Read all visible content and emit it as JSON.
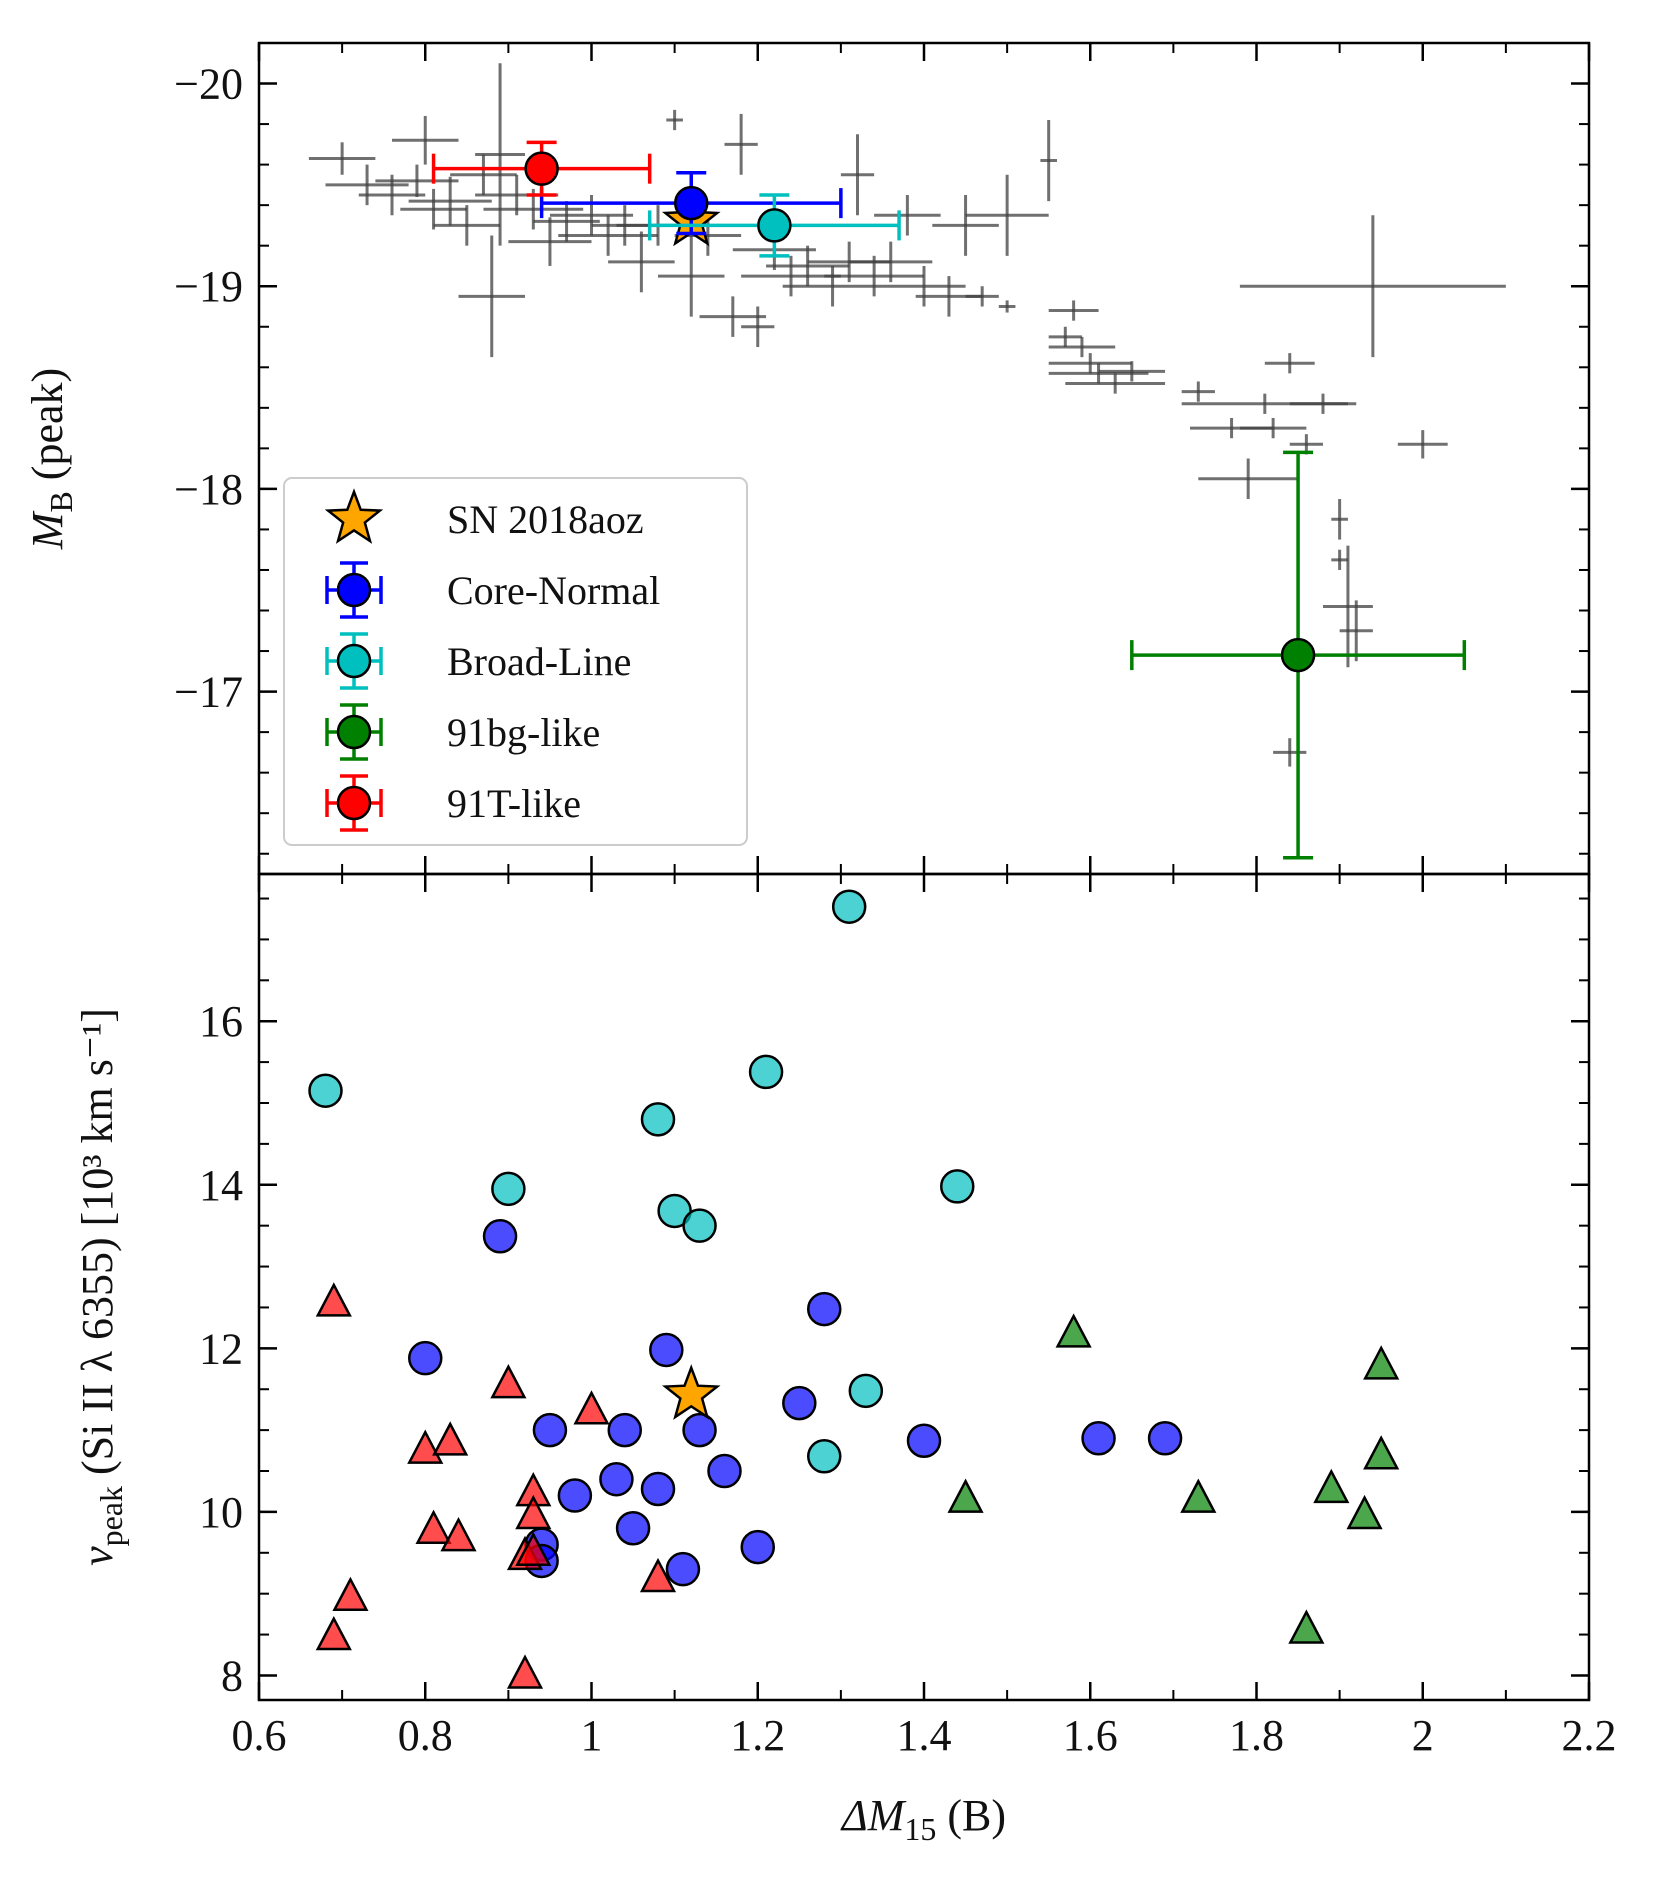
{
  "chart_data": [
    {
      "type": "errorbar",
      "ylabel": {
        "text": "M",
        "sub": "B",
        "after": " (peak)"
      },
      "xlim": [
        0.6,
        2.2
      ],
      "xticks": [
        0.6,
        0.8,
        1.0,
        1.2,
        1.4,
        1.6,
        1.8,
        2.0,
        2.2
      ],
      "ylim": [
        -16.1,
        -20.2
      ],
      "yticks": [
        {
          "value": -20,
          "label": "−20"
        },
        {
          "value": -19,
          "label": "−19"
        },
        {
          "value": -18,
          "label": "−18"
        },
        {
          "value": -17,
          "label": "−17"
        }
      ],
      "legend": "lower left",
      "series": [
        {
          "name": "SN 2018aoz",
          "marker": "star",
          "color": "#ffa500",
          "x": [
            1.12
          ],
          "values": [
            -19.32
          ]
        },
        {
          "name": "Core-Normal",
          "marker": "circle",
          "color": "#0000ff",
          "x": [
            1.12
          ],
          "values": [
            -19.41
          ],
          "xerr": [
            0.18
          ],
          "yerr": [
            0.15
          ]
        },
        {
          "name": "Broad-Line",
          "marker": "circle",
          "color": "#00bfbf",
          "x": [
            1.22
          ],
          "values": [
            -19.3
          ],
          "xerr": [
            0.15
          ],
          "yerr": [
            0.15
          ]
        },
        {
          "name": "91bg-like",
          "marker": "circle",
          "color": "#008000",
          "x": [
            1.85
          ],
          "values": [
            -17.18
          ],
          "xerr": [
            0.2
          ],
          "yerr": [
            1.0
          ]
        },
        {
          "name": "91T-like",
          "marker": "circle",
          "color": "#ff0000",
          "x": [
            0.94
          ],
          "values": [
            -19.58
          ],
          "xerr": [
            0.13
          ],
          "yerr": [
            0.13
          ]
        },
        {
          "marker": "plus",
          "color": "#404040",
          "x": [
            0.7,
            0.73,
            0.76,
            0.79,
            0.8,
            0.81,
            0.83,
            0.85,
            0.87,
            0.88,
            0.89,
            0.91,
            0.93,
            0.95,
            0.97,
            1.0,
            1.02,
            1.04,
            1.06,
            1.08,
            1.1,
            1.12,
            1.14,
            1.17,
            1.18,
            1.2,
            1.22,
            1.24,
            1.26,
            1.29,
            1.31,
            1.32,
            1.34,
            1.36,
            1.38,
            1.4,
            1.43,
            1.45,
            1.47,
            1.5,
            1.5,
            1.55,
            1.57,
            1.58,
            1.59,
            1.6,
            1.61,
            1.63,
            1.65,
            1.73,
            1.77,
            1.79,
            1.81,
            1.82,
            1.84,
            1.86,
            1.88,
            1.9,
            1.91,
            1.92,
            1.9,
            1.84,
            1.94,
            2.0
          ],
          "values": [
            -19.63,
            -19.5,
            -19.45,
            -19.52,
            -19.72,
            -19.38,
            -19.42,
            -19.3,
            -19.55,
            -18.95,
            -19.65,
            -19.45,
            -19.38,
            -19.22,
            -19.32,
            -19.35,
            -19.25,
            -19.3,
            -19.12,
            -19.3,
            -19.82,
            -19.05,
            -19.25,
            -18.85,
            -19.7,
            -18.8,
            -19.18,
            -19.05,
            -19.1,
            -19.0,
            -19.12,
            -19.55,
            -19.05,
            -19.12,
            -19.35,
            -19.0,
            -18.95,
            -19.3,
            -18.95,
            -18.9,
            -19.35,
            -19.62,
            -18.75,
            -18.88,
            -18.7,
            -18.62,
            -18.57,
            -18.52,
            -18.58,
            -18.48,
            -18.3,
            -18.05,
            -18.42,
            -18.3,
            -18.62,
            -18.22,
            -18.42,
            -17.85,
            -17.42,
            -17.3,
            -17.65,
            -16.7,
            -19.0,
            -18.22
          ],
          "xerr": [
            0.04,
            0.05,
            0.04,
            0.05,
            0.04,
            0.04,
            0.05,
            0.04,
            0.04,
            0.04,
            0.03,
            0.05,
            0.06,
            0.05,
            0.04,
            0.05,
            0.06,
            0.04,
            0.04,
            0.05,
            0.01,
            0.04,
            0.04,
            0.04,
            0.02,
            0.02,
            0.05,
            0.06,
            0.05,
            0.06,
            0.05,
            0.02,
            0.06,
            0.05,
            0.04,
            0.05,
            0.04,
            0.04,
            0.02,
            0.01,
            0.05,
            0.01,
            0.02,
            0.03,
            0.04,
            0.05,
            0.06,
            0.06,
            0.04,
            0.02,
            0.05,
            0.06,
            0.1,
            0.04,
            0.03,
            0.02,
            0.04,
            0.01,
            0.03,
            0.02,
            0.01,
            0.02,
            0.16,
            0.03
          ],
          "yerr": [
            0.08,
            0.1,
            0.1,
            0.08,
            0.12,
            0.1,
            0.12,
            0.1,
            0.1,
            0.3,
            0.45,
            0.1,
            0.1,
            0.12,
            0.1,
            0.1,
            0.1,
            0.1,
            0.15,
            0.1,
            0.05,
            0.2,
            0.1,
            0.1,
            0.15,
            0.1,
            0.1,
            0.1,
            0.1,
            0.1,
            0.1,
            0.2,
            0.1,
            0.1,
            0.1,
            0.1,
            0.1,
            0.15,
            0.05,
            0.03,
            0.2,
            0.2,
            0.05,
            0.05,
            0.05,
            0.05,
            0.05,
            0.05,
            0.05,
            0.05,
            0.05,
            0.1,
            0.05,
            0.05,
            0.05,
            0.05,
            0.05,
            0.1,
            0.3,
            0.15,
            0.05,
            0.07,
            0.35,
            0.07
          ]
        }
      ]
    },
    {
      "type": "scatter",
      "xlabel": {
        "text": "ΔM",
        "sub": "15",
        "after": " (B)"
      },
      "ylabel": {
        "text": "v",
        "sub": "peak",
        "after": " (Si II λ 6355) [10³ km s⁻¹]"
      },
      "xlim": [
        0.6,
        2.2
      ],
      "xticks": [
        0.6,
        0.8,
        1.0,
        1.2,
        1.4,
        1.6,
        1.8,
        2.0,
        2.2
      ],
      "ylim": [
        7.7,
        17.8
      ],
      "yticks": [
        8,
        10,
        12,
        14,
        16
      ],
      "series": [
        {
          "marker": "circle",
          "color": "#00bfbf",
          "x": [
            0.68,
            0.9,
            1.08,
            1.1,
            1.13,
            1.21,
            1.31,
            1.44,
            1.33,
            1.28
          ],
          "values": [
            15.15,
            13.95,
            14.8,
            13.68,
            13.5,
            15.38,
            17.4,
            13.98,
            11.48,
            10.68
          ]
        },
        {
          "marker": "circle",
          "color": "#0000ff",
          "x": [
            0.89,
            0.8,
            1.09,
            1.28,
            0.95,
            1.04,
            1.13,
            1.25,
            1.4,
            1.61,
            1.69,
            0.98,
            1.03,
            1.08,
            1.16,
            1.05,
            0.94,
            0.94,
            1.11,
            1.2
          ],
          "values": [
            13.37,
            11.88,
            11.98,
            12.48,
            11.0,
            11.0,
            11.0,
            11.33,
            10.87,
            10.9,
            10.9,
            10.2,
            10.4,
            10.28,
            10.5,
            9.8,
            9.6,
            9.4,
            9.3,
            9.57
          ]
        },
        {
          "marker": "triangle",
          "color": "#ff0000",
          "x": [
            0.69,
            0.9,
            1.0,
            0.8,
            0.83,
            0.81,
            0.84,
            0.93,
            0.93,
            0.92,
            0.93,
            1.08,
            0.71,
            0.69,
            0.92
          ],
          "values": [
            12.55,
            11.55,
            11.23,
            10.75,
            10.85,
            9.77,
            9.68,
            10.23,
            9.95,
            9.45,
            9.5,
            9.18,
            8.95,
            8.47,
            8.0
          ]
        },
        {
          "marker": "triangle",
          "color": "#008000",
          "x": [
            1.58,
            1.45,
            1.73,
            1.89,
            1.93,
            1.95,
            1.95,
            1.86
          ],
          "values": [
            12.17,
            10.15,
            10.15,
            10.27,
            9.95,
            10.68,
            11.78,
            8.55
          ]
        },
        {
          "marker": "star",
          "color": "#ffa500",
          "x": [
            1.12
          ],
          "values": [
            11.43
          ]
        }
      ]
    }
  ]
}
